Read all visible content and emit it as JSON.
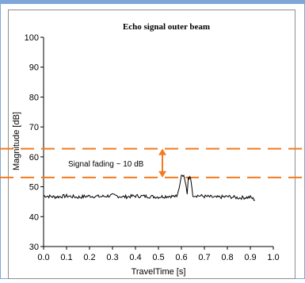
{
  "colors": {
    "window_border": "#7ea7d8",
    "plot_frame": "#8f8f8f",
    "signal": "#000000",
    "annotation": "#f37a1e"
  },
  "chart_data": {
    "type": "line",
    "title": "Echo signal outer beam",
    "xlabel": "TravelTime [s]",
    "ylabel": "Magnitude [dB]",
    "xlim": [
      0.0,
      1.0
    ],
    "ylim": [
      30,
      100
    ],
    "x_ticks": [
      "0.0",
      "0.1",
      "0.2",
      "0.3",
      "0.4",
      "0.5",
      "0.6",
      "0.7",
      "0.8",
      "0.9",
      "1.0"
    ],
    "y_ticks": [
      "30",
      "40",
      "50",
      "60",
      "70",
      "80",
      "90",
      "100"
    ],
    "grid": false,
    "series": [
      {
        "x": [
          0.0,
          0.05,
          0.1,
          0.15,
          0.2,
          0.25,
          0.3,
          0.35,
          0.4,
          0.45,
          0.5,
          0.55,
          0.58,
          0.59,
          0.6,
          0.61,
          0.62,
          0.625,
          0.63,
          0.64,
          0.65,
          0.7,
          0.75,
          0.8,
          0.85,
          0.9,
          0.92
        ],
        "y": [
          47,
          46.6,
          46.9,
          46.5,
          46.9,
          46.7,
          47.1,
          46.6,
          46.9,
          46.8,
          46.6,
          46.9,
          46.7,
          49.5,
          53.6,
          53.8,
          50.5,
          47.5,
          53.2,
          52.8,
          47.2,
          46.8,
          46.4,
          46.7,
          46.3,
          46.5,
          45.6
        ]
      }
    ],
    "reference_lines": [
      {
        "y": 62.7,
        "style": "dashed"
      },
      {
        "y": 53.1,
        "style": "dashed"
      }
    ],
    "annotation": {
      "text": "Signal fading ~ 10 dB",
      "from": 62.7,
      "to": 53.1
    }
  }
}
